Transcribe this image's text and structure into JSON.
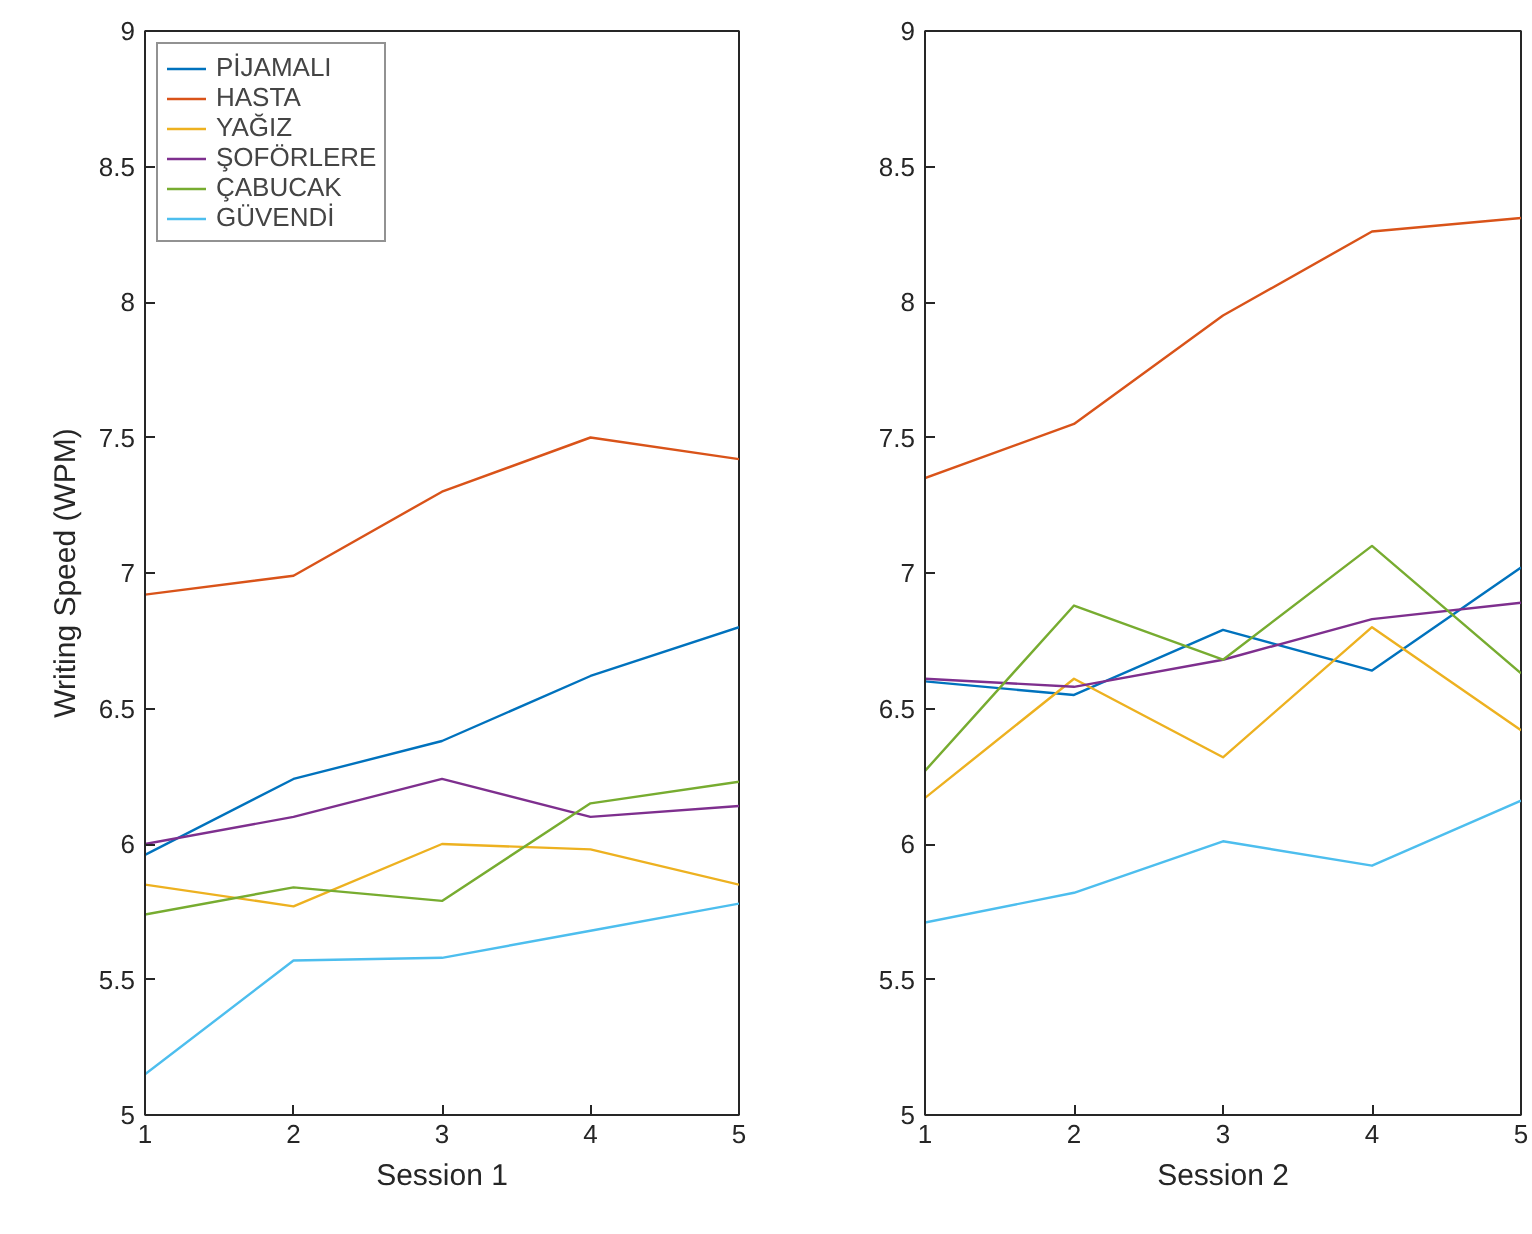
{
  "chart_data": [
    {
      "type": "line",
      "xlabel": "Session 1",
      "ylabel": "Writing Speed (WPM)",
      "x": [
        1,
        2,
        3,
        4,
        5
      ],
      "xlim": [
        1,
        5
      ],
      "xticks": [
        1,
        2,
        3,
        4,
        5
      ],
      "ylim": [
        5,
        9
      ],
      "yticks": [
        5,
        5.5,
        6,
        6.5,
        7,
        7.5,
        8,
        8.5,
        9
      ],
      "legend": "top left",
      "grid": false,
      "series": [
        {
          "name": "PİJAMALI",
          "color": "#0072bd",
          "values": [
            5.96,
            6.24,
            6.38,
            6.62,
            6.8
          ]
        },
        {
          "name": "HASTA",
          "color": "#d95319",
          "values": [
            6.92,
            6.99,
            7.3,
            7.5,
            7.42
          ]
        },
        {
          "name": "YAĞIZ",
          "color": "#edb120",
          "values": [
            5.85,
            5.77,
            6.0,
            5.98,
            5.85
          ]
        },
        {
          "name": "ŞOFÖRLERE",
          "color": "#7e2f8e",
          "values": [
            6.0,
            6.1,
            6.24,
            6.1,
            6.14
          ]
        },
        {
          "name": "ÇABUCAK",
          "color": "#77ac30",
          "values": [
            5.74,
            5.84,
            5.79,
            6.15,
            6.23
          ]
        },
        {
          "name": "GÜVENDİ",
          "color": "#4dbeee",
          "values": [
            5.15,
            5.57,
            5.58,
            5.68,
            5.78
          ]
        }
      ]
    },
    {
      "type": "line",
      "xlabel": "Session 2",
      "x": [
        1,
        2,
        3,
        4,
        5
      ],
      "xlim": [
        1,
        5
      ],
      "xticks": [
        1,
        2,
        3,
        4,
        5
      ],
      "ylim": [
        5,
        9
      ],
      "yticks": [
        5,
        5.5,
        6,
        6.5,
        7,
        7.5,
        8,
        8.5,
        9
      ],
      "grid": false,
      "series": [
        {
          "color": "#0072bd",
          "values": [
            6.6,
            6.55,
            6.79,
            6.64,
            7.02
          ]
        },
        {
          "color": "#d95319",
          "values": [
            7.35,
            7.55,
            7.95,
            8.26,
            8.31
          ]
        },
        {
          "color": "#edb120",
          "values": [
            6.17,
            6.61,
            6.32,
            6.8,
            6.42
          ]
        },
        {
          "color": "#7e2f8e",
          "values": [
            6.61,
            6.58,
            6.68,
            6.83,
            6.89
          ]
        },
        {
          "color": "#77ac30",
          "values": [
            6.27,
            6.88,
            6.68,
            7.1,
            6.63
          ]
        },
        {
          "color": "#4dbeee",
          "values": [
            5.71,
            5.82,
            6.01,
            5.92,
            6.16
          ]
        }
      ]
    }
  ]
}
